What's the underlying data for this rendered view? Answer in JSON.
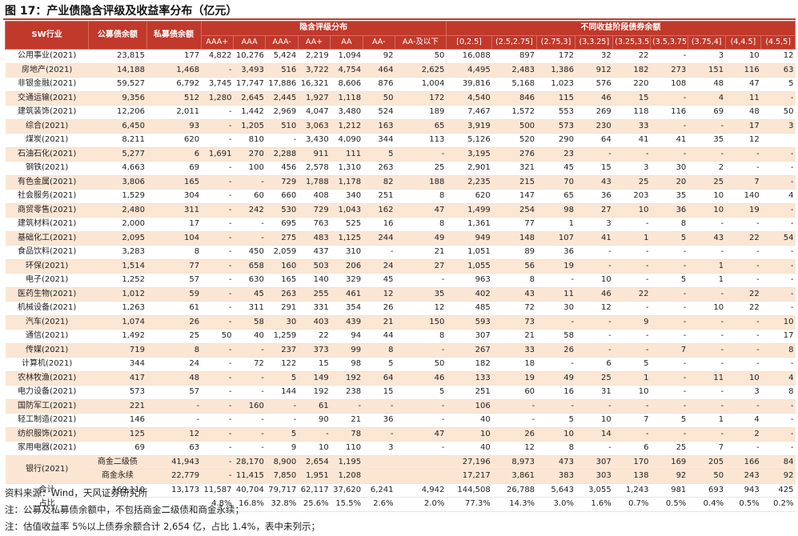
{
  "title": "图 17：产业债隐含评级及收益率分布（亿元）",
  "header": {
    "industry": "SW行业",
    "public": "公募债余额",
    "private": "私募债余额",
    "implied_group": "隐含评级分布",
    "yield_group": "不同收益阶段债券余额",
    "ratings": [
      "AAA+",
      "AAA",
      "AAA-",
      "AA+",
      "AA",
      "AA-",
      "AA-及以下"
    ],
    "yields": [
      "[0,2.5]",
      "(2.5,2.75]",
      "(2.75,3]",
      "(3,3.25]",
      "(3.25,3.5]",
      "(3.5,3.75]",
      "(3.75,4]",
      "(4,4.5]",
      "(4.5,5]"
    ]
  },
  "rows": [
    {
      "name": "公用事业(2021)",
      "pub": "23,815",
      "pri": "177",
      "r": [
        "4,822",
        "10,276",
        "5,424",
        "2,219",
        "1,094",
        "92",
        "50"
      ],
      "y": [
        "16,088",
        "897",
        "172",
        "32",
        "22",
        "-",
        "3",
        "10",
        "12"
      ]
    },
    {
      "name": "房地产(2021)",
      "pub": "14,188",
      "pri": "1,468",
      "r": [
        "-",
        "3,493",
        "516",
        "3,722",
        "4,754",
        "464",
        "2,625"
      ],
      "y": [
        "4,495",
        "2,483",
        "1,386",
        "912",
        "182",
        "273",
        "151",
        "116",
        "63"
      ]
    },
    {
      "name": "非银金融(2021)",
      "pub": "59,527",
      "pri": "6,792",
      "r": [
        "3,745",
        "17,747",
        "17,886",
        "16,321",
        "8,606",
        "876",
        "1,004"
      ],
      "y": [
        "39,816",
        "5,168",
        "1,023",
        "576",
        "220",
        "108",
        "48",
        "47",
        "5"
      ]
    },
    {
      "name": "交通运输(2021)",
      "pub": "9,356",
      "pri": "512",
      "r": [
        "1,280",
        "2,645",
        "2,445",
        "1,927",
        "1,118",
        "50",
        "172"
      ],
      "y": [
        "4,540",
        "846",
        "115",
        "46",
        "15",
        "-",
        "4",
        "11",
        "-"
      ]
    },
    {
      "name": "建筑装饰(2021)",
      "pub": "12,206",
      "pri": "2,011",
      "r": [
        "-",
        "1,442",
        "2,969",
        "4,047",
        "3,480",
        "524",
        "189"
      ],
      "y": [
        "7,467",
        "1,572",
        "553",
        "269",
        "118",
        "116",
        "69",
        "48",
        "50"
      ]
    },
    {
      "name": "综合(2021)",
      "pub": "6,450",
      "pri": "93",
      "r": [
        "-",
        "1,205",
        "510",
        "3,063",
        "1,212",
        "163",
        "65"
      ],
      "y": [
        "3,919",
        "500",
        "573",
        "230",
        "33",
        "-",
        "-",
        "17",
        "3"
      ]
    },
    {
      "name": "煤炭(2021)",
      "pub": "8,211",
      "pri": "620",
      "r": [
        "-",
        "810",
        "-",
        "3,430",
        "4,090",
        "344",
        "113"
      ],
      "y": [
        "5,126",
        "520",
        "290",
        "64",
        "41",
        "41",
        "35",
        "12",
        ""
      ]
    },
    {
      "name": "石油石化(2021)",
      "pub": "5,277",
      "pri": "6",
      "r": [
        "1,691",
        "270",
        "2,288",
        "911",
        "111",
        "5",
        "-"
      ],
      "y": [
        "3,195",
        "276",
        "23",
        "-",
        "-",
        "-",
        "-",
        "-",
        "-"
      ]
    },
    {
      "name": "钢铁(2021)",
      "pub": "4,663",
      "pri": "69",
      "r": [
        "-",
        "100",
        "456",
        "2,578",
        "1,310",
        "263",
        "25"
      ],
      "y": [
        "2,901",
        "321",
        "45",
        "15",
        "3",
        "30",
        "2",
        "-",
        "-"
      ]
    },
    {
      "name": "有色金属(2021)",
      "pub": "3,806",
      "pri": "165",
      "r": [
        "-",
        "-",
        "729",
        "1,788",
        "1,178",
        "82",
        "188"
      ],
      "y": [
        "2,235",
        "215",
        "70",
        "43",
        "25",
        "20",
        "25",
        "7",
        "-"
      ]
    },
    {
      "name": "社会服务(2021)",
      "pub": "1,529",
      "pri": "304",
      "r": [
        "-",
        "60",
        "660",
        "408",
        "340",
        "251",
        "8"
      ],
      "y": [
        "620",
        "147",
        "65",
        "36",
        "203",
        "35",
        "10",
        "140",
        "4"
      ]
    },
    {
      "name": "商贸零售(2021)",
      "pub": "2,480",
      "pri": "311",
      "r": [
        "-",
        "242",
        "530",
        "729",
        "1,043",
        "162",
        "47"
      ],
      "y": [
        "1,499",
        "254",
        "98",
        "27",
        "10",
        "36",
        "10",
        "19",
        "-"
      ]
    },
    {
      "name": "建筑材料(2021)",
      "pub": "2,000",
      "pri": "17",
      "r": [
        "-",
        "-",
        "695",
        "763",
        "525",
        "16",
        "8"
      ],
      "y": [
        "1,361",
        "77",
        "1",
        "3",
        "-",
        "8",
        "-",
        "-",
        "-"
      ]
    },
    {
      "name": "基础化工(2021)",
      "pub": "2,095",
      "pri": "104",
      "r": [
        "-",
        "-",
        "275",
        "483",
        "1,125",
        "244",
        "49"
      ],
      "y": [
        "949",
        "148",
        "107",
        "41",
        "1",
        "5",
        "43",
        "22",
        "54"
      ]
    },
    {
      "name": "食品饮料(2021)",
      "pub": "3,283",
      "pri": "8",
      "r": [
        "-",
        "450",
        "2,059",
        "437",
        "310",
        "-",
        "21"
      ],
      "y": [
        "1,051",
        "89",
        "36",
        "-",
        "-",
        "-",
        "-",
        "-",
        "-"
      ]
    },
    {
      "name": "环保(2021)",
      "pub": "1,514",
      "pri": "77",
      "r": [
        "-",
        "658",
        "160",
        "503",
        "206",
        "24",
        "27"
      ],
      "y": [
        "1,055",
        "56",
        "19",
        "-",
        "-",
        "-",
        "1",
        "-",
        "-"
      ]
    },
    {
      "name": "电子(2021)",
      "pub": "1,252",
      "pri": "57",
      "r": [
        "-",
        "630",
        "165",
        "140",
        "329",
        "45",
        "-"
      ],
      "y": [
        "963",
        "8",
        "-",
        "10",
        "-",
        "5",
        "1",
        "-",
        "-"
      ]
    },
    {
      "name": "医药生物(2021)",
      "pub": "1,012",
      "pri": "59",
      "r": [
        "-",
        "45",
        "263",
        "255",
        "461",
        "12",
        "35"
      ],
      "y": [
        "402",
        "43",
        "11",
        "46",
        "22",
        "-",
        "-",
        "22",
        "-"
      ]
    },
    {
      "name": "机械设备(2021)",
      "pub": "1,263",
      "pri": "61",
      "r": [
        "-",
        "311",
        "291",
        "331",
        "354",
        "26",
        "12"
      ],
      "y": [
        "485",
        "72",
        "30",
        "12",
        "-",
        "-",
        "10",
        "22",
        "-"
      ]
    },
    {
      "name": "汽车(2021)",
      "pub": "1,074",
      "pri": "26",
      "r": [
        "-",
        "58",
        "30",
        "403",
        "439",
        "21",
        "150"
      ],
      "y": [
        "593",
        "73",
        "-",
        "-",
        "9",
        "-",
        "-",
        "-",
        "10"
      ]
    },
    {
      "name": "通信(2021)",
      "pub": "1,492",
      "pri": "25",
      "r": [
        "50",
        "40",
        "1,259",
        "22",
        "94",
        "44",
        "8"
      ],
      "y": [
        "307",
        "21",
        "58",
        "-",
        "-",
        "-",
        "-",
        "-",
        "17"
      ]
    },
    {
      "name": "传媒(2021)",
      "pub": "719",
      "pri": "8",
      "r": [
        "-",
        "-",
        "237",
        "373",
        "99",
        "8",
        "-"
      ],
      "y": [
        "267",
        "33",
        "26",
        "-",
        "-",
        "7",
        "-",
        "-",
        "8"
      ]
    },
    {
      "name": "计算机(2021)",
      "pub": "344",
      "pri": "24",
      "r": [
        "-",
        "72",
        "122",
        "15",
        "98",
        "5",
        "50"
      ],
      "y": [
        "182",
        "18",
        "-",
        "6",
        "5",
        "-",
        "-",
        "-",
        "-"
      ]
    },
    {
      "name": "农林牧渔(2021)",
      "pub": "417",
      "pri": "48",
      "r": [
        "-",
        "-",
        "5",
        "149",
        "192",
        "64",
        "46"
      ],
      "y": [
        "133",
        "19",
        "49",
        "25",
        "1",
        "-",
        "11",
        "10",
        "4"
      ]
    },
    {
      "name": "电力设备(2021)",
      "pub": "573",
      "pri": "57",
      "r": [
        "-",
        "-",
        "144",
        "192",
        "238",
        "15",
        "5"
      ],
      "y": [
        "251",
        "60",
        "16",
        "31",
        "10",
        "-",
        "-",
        "3",
        "8"
      ]
    },
    {
      "name": "国防军工(2021)",
      "pub": "221",
      "pri": "-",
      "r": [
        "-",
        "160",
        "-",
        "61",
        "-",
        "-",
        "-"
      ],
      "y": [
        "106",
        "-",
        "-",
        "-",
        "-",
        "-",
        "-",
        "-",
        "-"
      ]
    },
    {
      "name": "轻工制造(2021)",
      "pub": "146",
      "pri": "-",
      "r": [
        "-",
        "-",
        "-",
        "90",
        "21",
        "36",
        "-"
      ],
      "y": [
        "40",
        "-",
        "5",
        "10",
        "7",
        "5",
        "1",
        "4",
        "-"
      ]
    },
    {
      "name": "纺织服饰(2021)",
      "pub": "125",
      "pri": "12",
      "r": [
        "-",
        "-",
        "5",
        "-",
        "78",
        "-",
        "47"
      ],
      "y": [
        "10",
        "26",
        "10",
        "14",
        "-",
        "-",
        "-",
        "2",
        "-"
      ]
    },
    {
      "name": "家用电器(2021)",
      "pub": "69",
      "pri": "63",
      "r": [
        "-",
        "-",
        "9",
        "10",
        "110",
        "3",
        "-"
      ],
      "y": [
        "40",
        "12",
        "8",
        "-",
        "6",
        "25",
        "7",
        "-",
        "-"
      ]
    }
  ],
  "bank": {
    "name": "银行(2021)",
    "subs": [
      {
        "label": "商金二级债",
        "pub": "41,943",
        "pri": "",
        "r": [
          "-",
          "28,170",
          "8,900",
          "2,654",
          "1,195",
          "",
          ""
        ],
        "y": [
          "27,196",
          "8,973",
          "473",
          "307",
          "170",
          "169",
          "205",
          "166",
          "84"
        ]
      },
      {
        "label": "商金永续",
        "pub": "22,779",
        "pri": "",
        "r": [
          "-",
          "11,415",
          "7,850",
          "1,951",
          "1,208",
          "",
          ""
        ],
        "y": [
          "17,217",
          "3,861",
          "383",
          "303",
          "138",
          "92",
          "50",
          "243",
          "92"
        ]
      }
    ]
  },
  "total": {
    "label": "合计",
    "pub": "169,110",
    "pri": "13,173",
    "r": [
      "11,587",
      "40,704",
      "79,717",
      "62,117",
      "37,620",
      "6,241",
      "4,942"
    ],
    "y": [
      "144,508",
      "26,788",
      "5,643",
      "3,055",
      "1,243",
      "981",
      "693",
      "943",
      "425"
    ]
  },
  "share": {
    "label": "占比",
    "pub": "",
    "pri": "",
    "r": [
      "4.8%",
      "16.8%",
      "32.8%",
      "25.6%",
      "15.5%",
      "2.6%",
      "2.0%"
    ],
    "y": [
      "77.3%",
      "14.3%",
      "3.0%",
      "1.6%",
      "0.7%",
      "0.5%",
      "0.4%",
      "0.5%",
      "0.2%"
    ]
  },
  "notes": [
    "资料来源：Wind，天风证券研究所",
    "注：公募及私募债余额中，不包括商金二级债和商金永续；",
    "注：估值收益率 5%以上债券余额合计 2,654 亿，占比 1.4%，表中未列示；"
  ]
}
